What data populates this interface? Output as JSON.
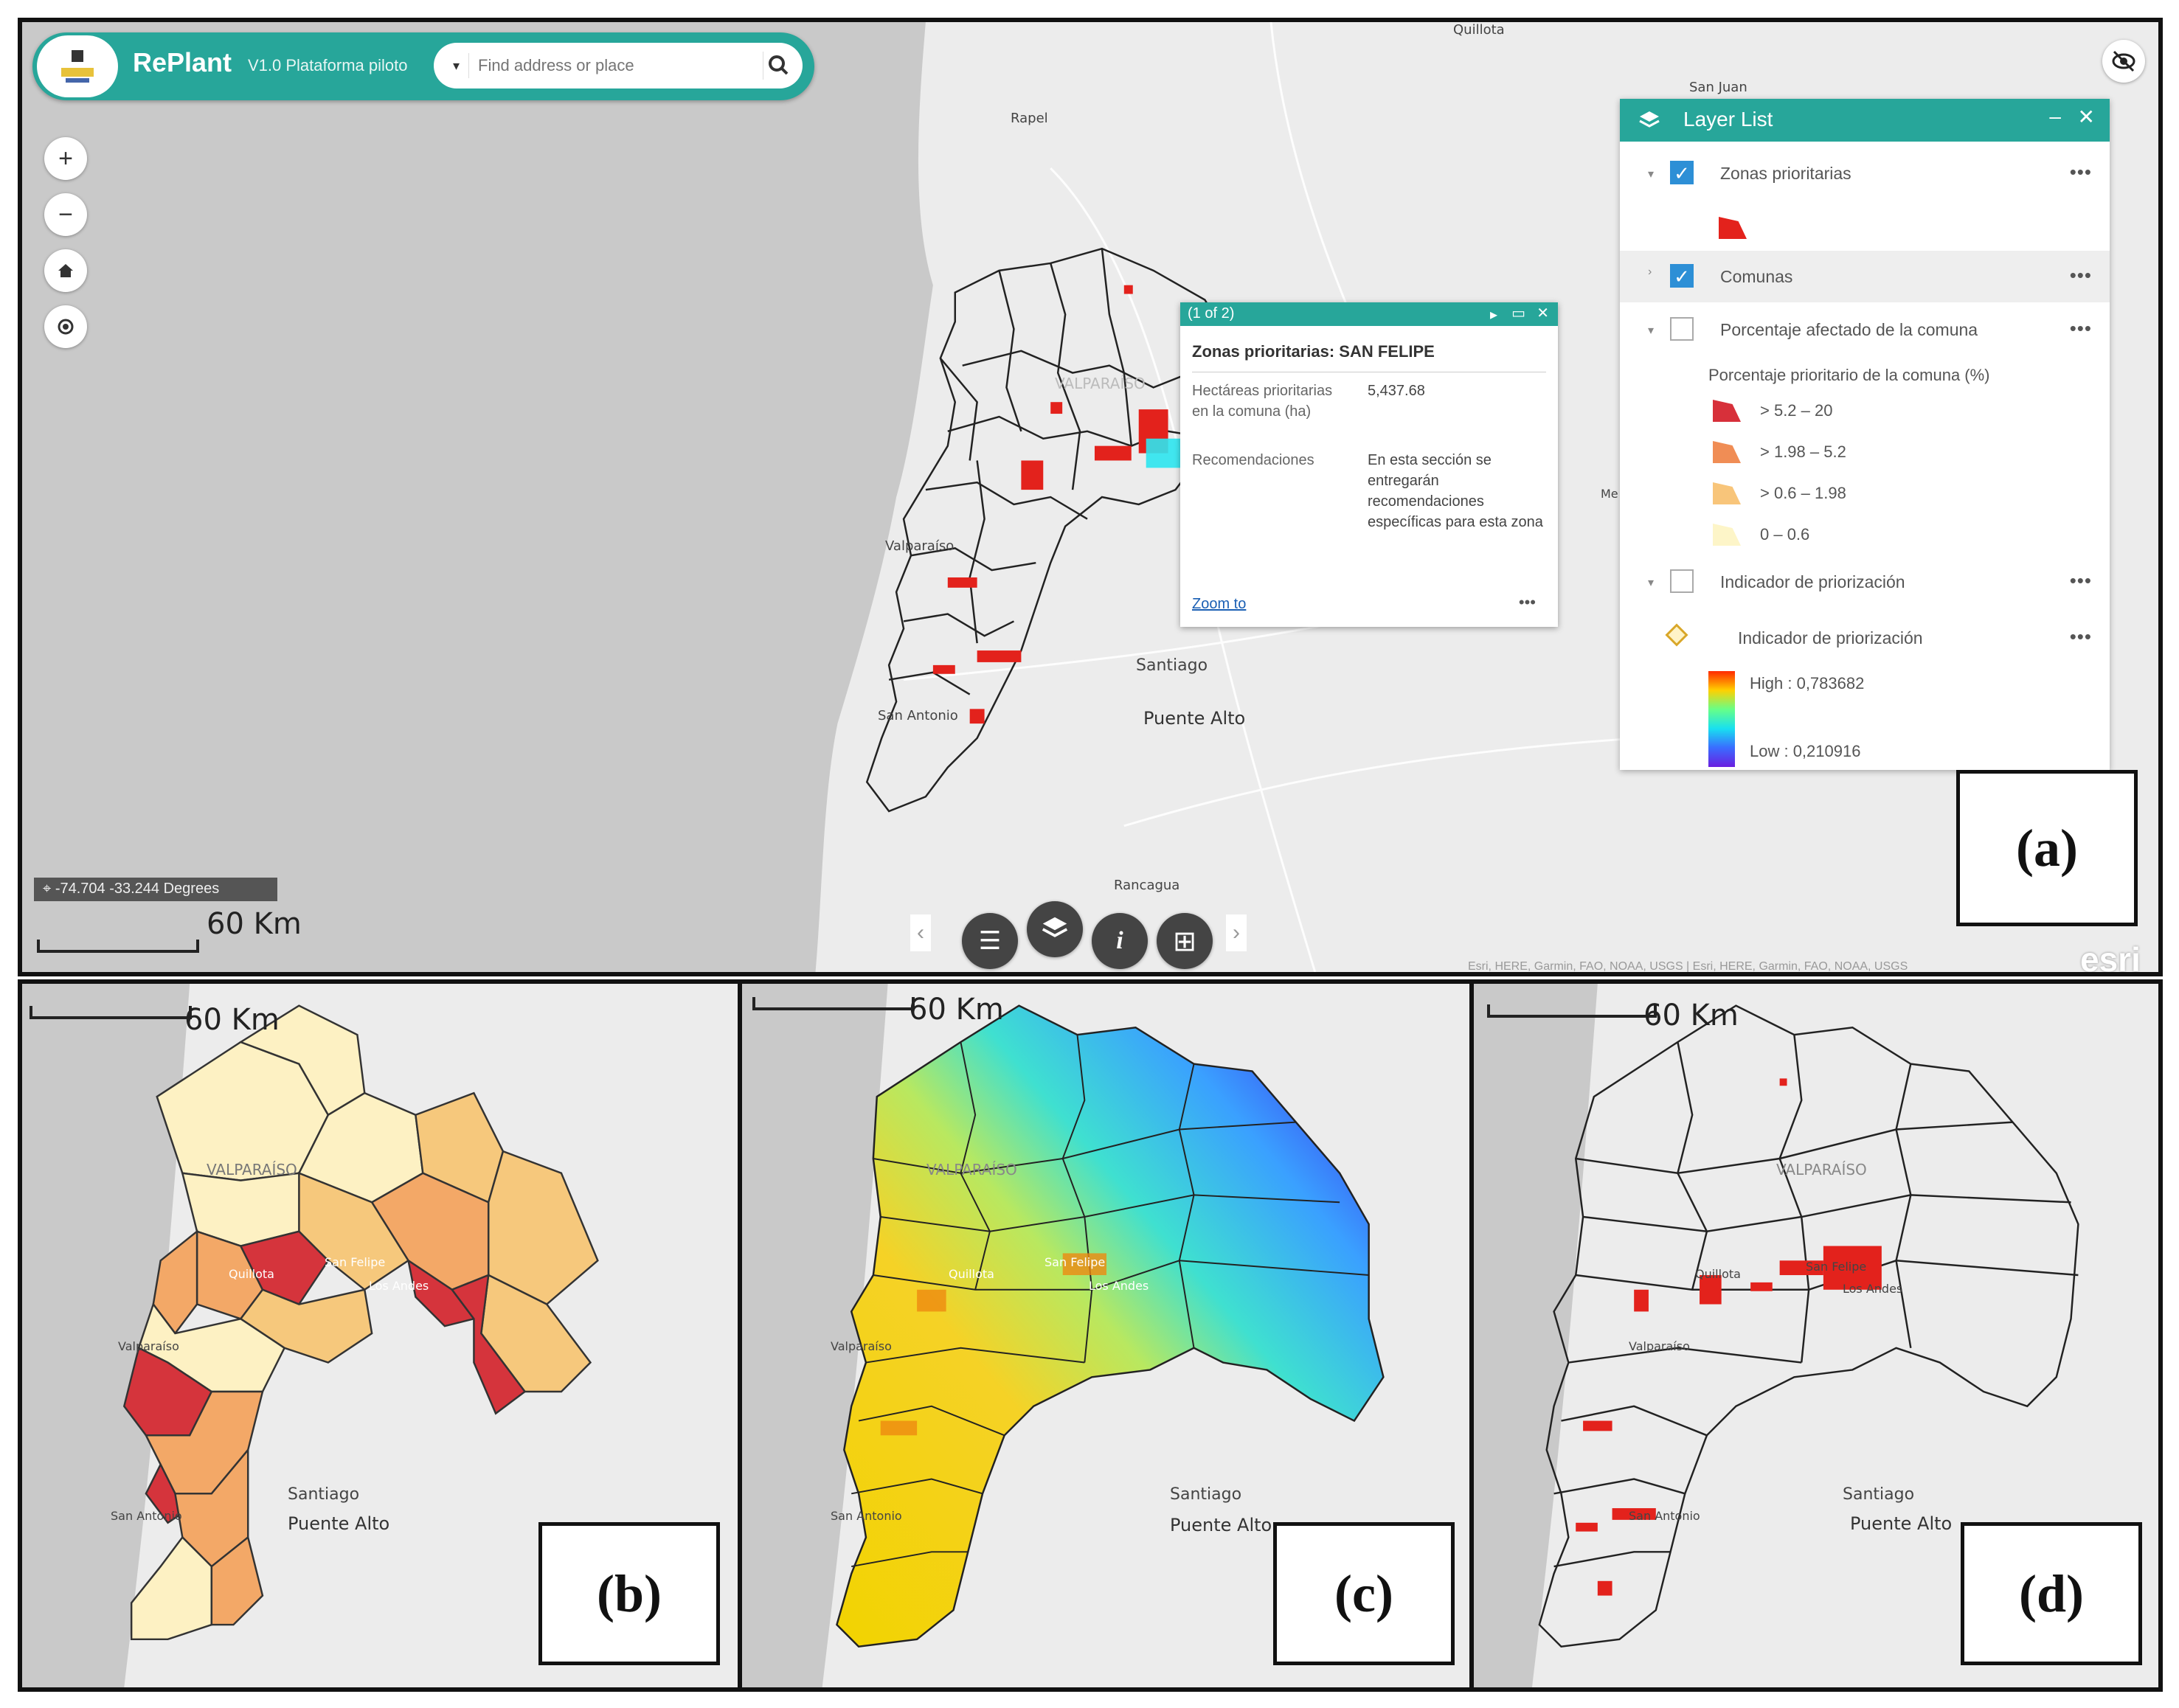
{
  "panel_a": {
    "header": {
      "app_title": "RePlant",
      "app_subtitle": "V1.0 Plataforma piloto",
      "search_placeholder": "Find address or place"
    },
    "popup": {
      "pager": "(1 of 2)",
      "title": "Zonas prioritarias: SAN FELIPE",
      "field1_label": "Hectáreas prioritarias en la comuna (ha)",
      "field1_value": "5,437.68",
      "field2_label": "Recomendaciones",
      "field2_value": "En esta sección se entregarán recomendaciones específicas para esta zona",
      "zoom_to": "Zoom to",
      "more": "•••"
    },
    "layer_list": {
      "title": "Layer List",
      "layers": [
        {
          "name": "Zonas prioritarias",
          "checked": true
        },
        {
          "name": "Comunas",
          "checked": true
        },
        {
          "name": "Porcentaje afectado de la comuna",
          "checked": false
        },
        {
          "name": "Indicador de priorización",
          "checked": false
        }
      ],
      "legend_title": "Porcentaje prioritario de la comuna (%)",
      "legend_items": [
        {
          "label": "> 5.2 – 20",
          "color": "#d7303a"
        },
        {
          "label": "> 1.98 – 5.2",
          "color": "#f08d55"
        },
        {
          "label": "> 0.6 – 1.98",
          "color": "#f8c57a"
        },
        {
          "label": "0 – 0.6",
          "color": "#fdf5c8"
        }
      ],
      "sublayer": "Indicador de priorización",
      "ramp_high": "High : 0,783682",
      "ramp_low": "Low : 0,210916",
      "more": "•••"
    },
    "coordinates": "-74.704 -33.244 Degrees",
    "scale_label": "60 Km",
    "attribution": "Esri, HERE, Garmin, FAO, NOAA, USGS | Esri, HERE, Garmin, FAO, NOAA, USGS",
    "esri_logo": "esri",
    "places": {
      "quillota": "Quillota",
      "san_juan": "San Juan",
      "rapel": "Rapel",
      "valparaiso_region": "VALPARAÍSO",
      "santiago": "Santiago",
      "puente_alto": "Puente Alto",
      "valparaiso": "Valparaíso",
      "san_antonio": "San Antonio",
      "rancagua": "Rancagua",
      "me": "Me",
      "los_andes": "Los Andes",
      "quillota_small": "Quillota"
    },
    "label": "(a)"
  },
  "panel_b": {
    "scale_label": "60 Km",
    "label": "(b)",
    "santiago": "Santiago",
    "puente_alto": "Puente Alto",
    "region": "VALPARAÍSO",
    "valparaiso": "Valparaíso",
    "san_antonio": "San Antonio",
    "quillota": "Quillota",
    "san_felipe": "San Felipe",
    "los_andes": "Los Andes"
  },
  "panel_c": {
    "scale_label": "60 Km",
    "label": "(c)",
    "santiago": "Santiago",
    "puente_alto": "Puente Alto",
    "region": "VALPARAÍSO",
    "valparaiso": "Valparaíso",
    "san_antonio": "San Antonio",
    "quillota": "Quillota",
    "san_felipe": "San Felipe",
    "los_andes": "Los Andes"
  },
  "panel_d": {
    "scale_label": "60 Km",
    "label": "(d)",
    "santiago": "Santiago",
    "puente_alto": "Puente Alto",
    "region": "VALPARAÍSO",
    "valparaiso": "Valparaíso",
    "san_antonio": "San Antonio",
    "quillota": "Quillota",
    "san_felipe": "San Felipe",
    "los_andes": "Los Andes"
  },
  "colors": {
    "ocean": "#c9c9c9",
    "land": "#ececec",
    "teal": "#27a69a",
    "priority_red": "#e3221c"
  },
  "icons": [
    "zoom-in-icon",
    "zoom-out-icon",
    "home-icon",
    "locate-icon",
    "visibility-off-icon",
    "search-icon",
    "layers-icon",
    "info-icon",
    "list-icon",
    "grid-icon"
  ]
}
